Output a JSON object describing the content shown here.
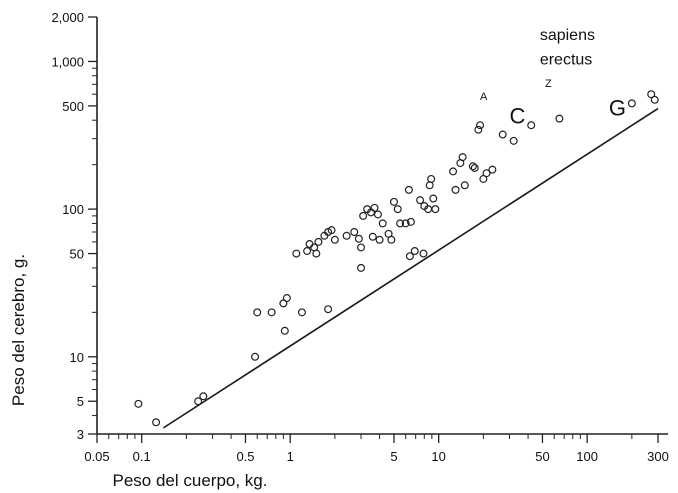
{
  "chart_data": {
    "type": "scatter",
    "xlabel": "Peso del cuerpo, kg.",
    "ylabel": "Peso del cerebro, g.",
    "x_scale": "log",
    "y_scale": "log",
    "xlim": [
      0.05,
      300
    ],
    "ylim": [
      3,
      2000
    ],
    "grid": false,
    "x_ticks": [
      {
        "value": 0.05,
        "label": "0.05"
      },
      {
        "value": 0.1,
        "label": "0.1"
      },
      {
        "value": 0.5,
        "label": "0.5"
      },
      {
        "value": 1,
        "label": "1"
      },
      {
        "value": 5,
        "label": "5"
      },
      {
        "value": 10,
        "label": "10"
      },
      {
        "value": 50,
        "label": "50"
      },
      {
        "value": 100,
        "label": "100"
      },
      {
        "value": 300,
        "label": "300"
      }
    ],
    "y_ticks": [
      {
        "value": 3,
        "label": "3"
      },
      {
        "value": 5,
        "label": "5"
      },
      {
        "value": 10,
        "label": "10"
      },
      {
        "value": 50,
        "label": "50"
      },
      {
        "value": 100,
        "label": "100"
      },
      {
        "value": 500,
        "label": "500"
      },
      {
        "value": 1000,
        "label": "1,000"
      },
      {
        "value": 2000,
        "label": "2,000"
      }
    ],
    "reference_line": {
      "x": [
        0.14,
        300
      ],
      "y": [
        3.3,
        480
      ]
    },
    "points": [
      {
        "x": 0.095,
        "y": 4.8
      },
      {
        "x": 0.125,
        "y": 3.6
      },
      {
        "x": 0.24,
        "y": 5.0
      },
      {
        "x": 0.26,
        "y": 5.4
      },
      {
        "x": 0.58,
        "y": 10
      },
      {
        "x": 0.6,
        "y": 20
      },
      {
        "x": 0.75,
        "y": 20
      },
      {
        "x": 0.9,
        "y": 23
      },
      {
        "x": 0.92,
        "y": 15
      },
      {
        "x": 0.95,
        "y": 25
      },
      {
        "x": 1.2,
        "y": 20
      },
      {
        "x": 1.8,
        "y": 21
      },
      {
        "x": 1.1,
        "y": 50
      },
      {
        "x": 1.3,
        "y": 52
      },
      {
        "x": 1.35,
        "y": 58
      },
      {
        "x": 1.45,
        "y": 55
      },
      {
        "x": 1.5,
        "y": 50
      },
      {
        "x": 1.55,
        "y": 60
      },
      {
        "x": 1.7,
        "y": 66
      },
      {
        "x": 1.8,
        "y": 70
      },
      {
        "x": 1.9,
        "y": 72
      },
      {
        "x": 2.0,
        "y": 62
      },
      {
        "x": 2.4,
        "y": 66
      },
      {
        "x": 2.7,
        "y": 70
      },
      {
        "x": 2.9,
        "y": 63
      },
      {
        "x": 3.0,
        "y": 55
      },
      {
        "x": 3.0,
        "y": 40
      },
      {
        "x": 3.1,
        "y": 90
      },
      {
        "x": 3.3,
        "y": 100
      },
      {
        "x": 3.5,
        "y": 95
      },
      {
        "x": 3.6,
        "y": 65
      },
      {
        "x": 3.7,
        "y": 102
      },
      {
        "x": 3.9,
        "y": 92
      },
      {
        "x": 4.0,
        "y": 62
      },
      {
        "x": 4.2,
        "y": 80
      },
      {
        "x": 4.6,
        "y": 68
      },
      {
        "x": 4.8,
        "y": 62
      },
      {
        "x": 5.0,
        "y": 112
      },
      {
        "x": 5.3,
        "y": 100
      },
      {
        "x": 5.5,
        "y": 80
      },
      {
        "x": 6.0,
        "y": 80
      },
      {
        "x": 6.3,
        "y": 135
      },
      {
        "x": 6.5,
        "y": 82
      },
      {
        "x": 6.4,
        "y": 48
      },
      {
        "x": 6.9,
        "y": 52
      },
      {
        "x": 7.5,
        "y": 115
      },
      {
        "x": 7.9,
        "y": 50
      },
      {
        "x": 8.0,
        "y": 105
      },
      {
        "x": 8.5,
        "y": 100
      },
      {
        "x": 8.7,
        "y": 145
      },
      {
        "x": 8.9,
        "y": 160
      },
      {
        "x": 9.2,
        "y": 118
      },
      {
        "x": 9.5,
        "y": 100
      },
      {
        "x": 12.5,
        "y": 180
      },
      {
        "x": 13,
        "y": 135
      },
      {
        "x": 14,
        "y": 205
      },
      {
        "x": 14.5,
        "y": 225
      },
      {
        "x": 15,
        "y": 145
      },
      {
        "x": 17,
        "y": 195
      },
      {
        "x": 17.5,
        "y": 190
      },
      {
        "x": 18.5,
        "y": 345
      },
      {
        "x": 19,
        "y": 370
      },
      {
        "x": 20,
        "y": 160
      },
      {
        "x": 21,
        "y": 175
      },
      {
        "x": 23,
        "y": 185
      },
      {
        "x": 27,
        "y": 320
      },
      {
        "x": 32,
        "y": 290
      },
      {
        "x": 42,
        "y": 370
      },
      {
        "x": 65,
        "y": 410
      },
      {
        "x": 200,
        "y": 520
      },
      {
        "x": 270,
        "y": 600
      },
      {
        "x": 285,
        "y": 550
      }
    ],
    "annotations": [
      {
        "text": "A",
        "x": 19,
        "y": 550,
        "size": "small"
      },
      {
        "text": "C",
        "x": 30,
        "y": 380,
        "size": "big"
      },
      {
        "text": "Z",
        "x": 52,
        "y": 670,
        "size": "small"
      },
      {
        "text": "G",
        "x": 140,
        "y": 430,
        "size": "big"
      },
      {
        "text": "sapiens",
        "x": 48,
        "y": 1400,
        "size": "label"
      },
      {
        "text": "erectus",
        "x": 48,
        "y": 950,
        "size": "label"
      }
    ]
  }
}
